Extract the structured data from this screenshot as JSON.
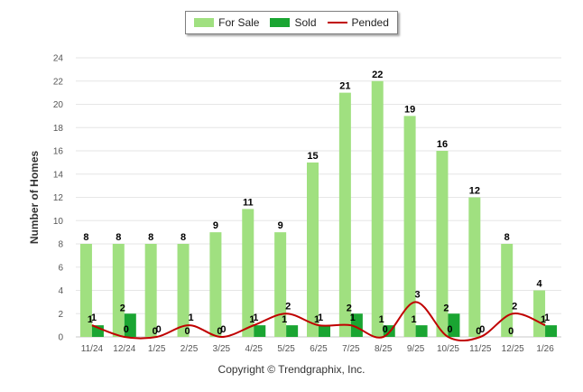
{
  "chart_data": {
    "type": "bar",
    "ylabel": "Number of Homes",
    "ylim": [
      0,
      24
    ],
    "yticks": [
      0,
      2,
      4,
      6,
      8,
      10,
      12,
      14,
      16,
      18,
      20,
      22,
      24
    ],
    "categories": [
      "11/24",
      "12/24",
      "1/25",
      "2/25",
      "3/25",
      "4/25",
      "5/25",
      "6/25",
      "7/25",
      "8/25",
      "9/25",
      "10/25",
      "11/25",
      "12/25",
      "1/26"
    ],
    "series": [
      {
        "name": "For Sale",
        "kind": "bar",
        "color": "#a0e080",
        "values": [
          8,
          8,
          8,
          8,
          9,
          11,
          9,
          15,
          21,
          22,
          19,
          16,
          12,
          8,
          4
        ]
      },
      {
        "name": "Sold",
        "kind": "bar",
        "color": "#1aa532",
        "values": [
          1,
          2,
          0,
          0,
          0,
          1,
          1,
          1,
          2,
          1,
          1,
          2,
          0,
          0,
          1
        ]
      },
      {
        "name": "Pended",
        "kind": "line",
        "color": "#c00000",
        "values": [
          1,
          0,
          0,
          1,
          0,
          1,
          2,
          1,
          1,
          0,
          3,
          0,
          0,
          2,
          1
        ]
      }
    ],
    "legend_position": "top-center",
    "grid": true
  },
  "footer": {
    "credit": "Copyright © Trendgraphix, Inc."
  }
}
